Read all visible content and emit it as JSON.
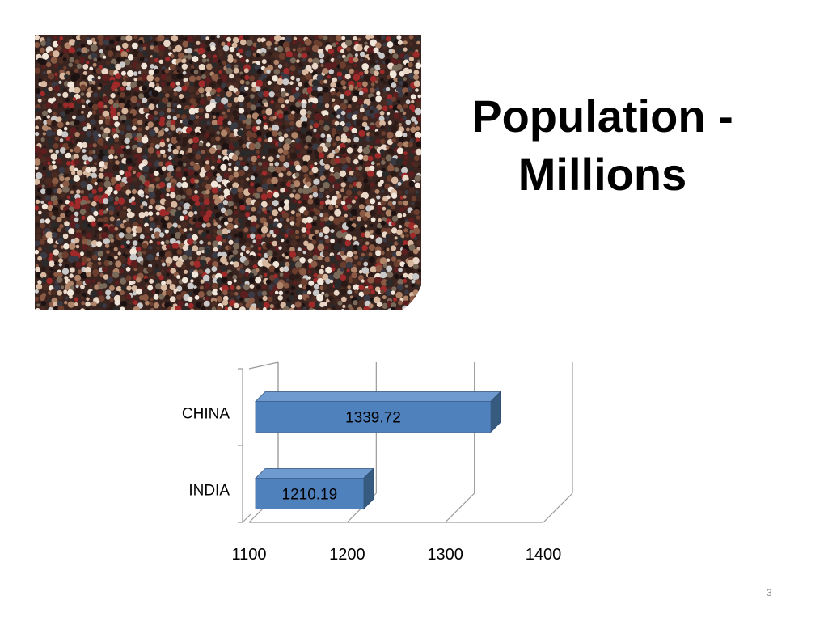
{
  "slide": {
    "title_line1": "Population -",
    "title_line2": "Millions",
    "slide_number": "3",
    "photo_icon": "crowd-photo"
  },
  "chart_data": {
    "type": "bar",
    "orientation": "horizontal",
    "style": "3d",
    "categories": [
      "CHINA",
      "INDIA"
    ],
    "values": [
      1339.72,
      1210.19
    ],
    "data_labels": [
      "1339.72",
      "1210.19"
    ],
    "xlim": [
      1100,
      1400
    ],
    "xticks": [
      1100,
      1200,
      1300,
      1400
    ],
    "grid": true,
    "legend": "none",
    "title": "",
    "xlabel": "",
    "ylabel": "",
    "bar_color": "#4f81bd",
    "bar_side_color": "#375a7f",
    "bar_top_color": "#6f9ad0"
  }
}
